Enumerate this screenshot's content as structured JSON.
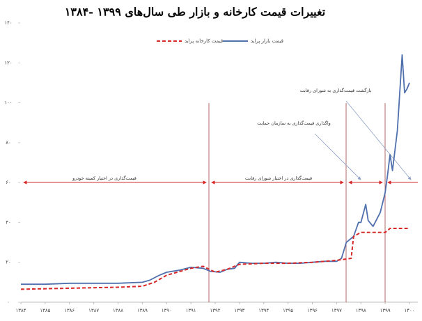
{
  "chart_data": {
    "type": "line",
    "title": "تغییرات قیمت کارخانه و بازار طی سال‌های ۱۳۹۹ -۱۳۸۴",
    "series": [
      {
        "name": "قیمت بازار پراید",
        "color": "#4f6fad",
        "dashed": false,
        "x": [
          1384,
          1385,
          1386,
          1387,
          1388,
          1389,
          1389.3,
          1389.7,
          1390,
          1390.5,
          1391,
          1391.5,
          1391.8,
          1392.2,
          1392.5,
          1392.8,
          1393,
          1393.5,
          1394,
          1394.5,
          1395,
          1395.5,
          1396,
          1396.5,
          1397,
          1397.2,
          1397.4,
          1397.7,
          1397.9,
          1398,
          1398.2,
          1398.3,
          1398.5,
          1398.8,
          1399,
          1399.1,
          1399.2,
          1399.3,
          1399.5,
          1399.7,
          1399.8,
          1399.9,
          1400
        ],
        "values": [
          9,
          9,
          9.5,
          9.5,
          9.5,
          10,
          11,
          13.5,
          15,
          16,
          17.5,
          17,
          15.5,
          15,
          16.5,
          17,
          20,
          19.5,
          19.5,
          20,
          19.5,
          19.5,
          20,
          20.5,
          20.5,
          22,
          30,
          33,
          40,
          40,
          49,
          41,
          38,
          45,
          55,
          64,
          74,
          66,
          86,
          124,
          105,
          107,
          110
        ]
      },
      {
        "name": "قیمت کارخانه پراید",
        "color": "#d62828",
        "dashed": true,
        "x": [
          1384,
          1386,
          1388,
          1389,
          1389.5,
          1390,
          1391,
          1391.5,
          1392,
          1392.5,
          1393,
          1394,
          1395,
          1396,
          1397,
          1397.6,
          1397.7,
          1398,
          1399,
          1399.1,
          1399.2,
          1400
        ],
        "values": [
          6.5,
          7,
          7.5,
          8,
          10,
          13.5,
          17,
          18,
          15,
          16.5,
          19,
          19.5,
          19.5,
          20,
          21,
          22,
          33,
          35,
          35,
          36,
          37,
          37
        ]
      }
    ],
    "xlim": [
      1384,
      1400
    ],
    "xticks": [
      {
        "value": 1384,
        "label": "۱۳۸۴"
      },
      {
        "value": 1385,
        "label": "۱۳۸۵"
      },
      {
        "value": 1386,
        "label": "۱۳۸۶"
      },
      {
        "value": 1387,
        "label": "۱۳۸۷"
      },
      {
        "value": 1388,
        "label": "۱۳۸۸"
      },
      {
        "value": 1389,
        "label": "۱۳۸۹"
      },
      {
        "value": 1390,
        "label": "۱۳۹۰"
      },
      {
        "value": 1391,
        "label": "۱۳۹۱"
      },
      {
        "value": 1392,
        "label": "۱۳۹۲"
      },
      {
        "value": 1393,
        "label": "۱۳۹۳"
      },
      {
        "value": 1394,
        "label": "۱۳۹۴"
      },
      {
        "value": 1395,
        "label": "۱۳۹۵"
      },
      {
        "value": 1396,
        "label": "۱۳۹۶"
      },
      {
        "value": 1397,
        "label": "۱۳۹۷"
      },
      {
        "value": 1398,
        "label": "۱۳۹۸"
      },
      {
        "value": 1399,
        "label": "۱۳۹۹"
      },
      {
        "value": 1400,
        "label": "۱۴۰۰"
      }
    ],
    "ylim": [
      0,
      140
    ],
    "yticks": [
      {
        "value": 0,
        "label": "۰"
      },
      {
        "value": 20,
        "label": "۲۰"
      },
      {
        "value": 40,
        "label": "۴۰"
      },
      {
        "value": 60,
        "label": "۶۰"
      },
      {
        "value": 80,
        "label": "۸۰"
      },
      {
        "value": 100,
        "label": "۱۰۰"
      },
      {
        "value": 120,
        "label": "۱۲۰"
      },
      {
        "value": 140,
        "label": "۱۴۰"
      }
    ],
    "grid": false,
    "annotations": [
      "قیمت‌گذاری در اختیار کمیته خودرو",
      "قیمت‌گذاری در اختیار شورای رقابت",
      "واگذاری قیمت‌گذاری به سازمان حمایت",
      "بازگشت قیمت‌گذاری به شورای رقابت"
    ]
  }
}
